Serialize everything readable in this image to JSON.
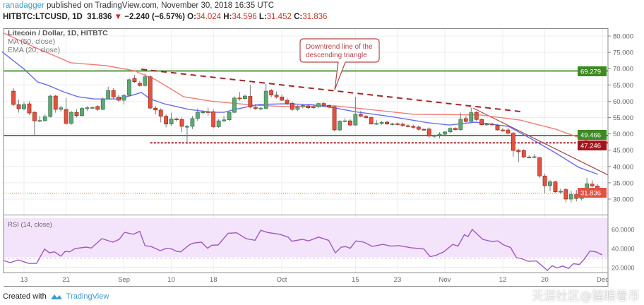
{
  "header": {
    "user": "ranadagger",
    "published": "published on TradingView.com, November 30, 2018 16:35 UTC",
    "symbol": "HITBTC:LTCUSD, 1D",
    "last": "31.836",
    "change": "−2.240 (−6.57%)",
    "o_label": "O:",
    "o": "34.024",
    "h_label": "H:",
    "h": "34.596",
    "l_label": "L:",
    "l": "31.452",
    "c_label": "C:",
    "c": "31.836",
    "down_icon": "triangle-down-icon"
  },
  "legend": {
    "title": "Litecoin / Dollar, 1D, HITBTC",
    "ma": "MA (50, close)",
    "ema": "EMA (20, close)",
    "rsi": "RSI (14, close)"
  },
  "annotation": {
    "line1": "Downtrend line of the",
    "line2": "descending triangle"
  },
  "price_labels": {
    "resistance": "69.279",
    "support": "49.466",
    "support2": "47.246",
    "current": "31.836"
  },
  "colors": {
    "up": "#5fa777",
    "down": "#e0533f",
    "ma": "#f07c78",
    "ema": "#6a6cf0",
    "level": "#3d8a22",
    "support2": "#a3151b",
    "rsi": "#a057c0",
    "trend": "#a0282e"
  },
  "footer": {
    "created": "Created with",
    "brand": "TradingView",
    "watermark": "天涯社区@猫眼看币"
  },
  "chart_data": {
    "type": "candlestick",
    "title": "Litecoin / Dollar, 1D, HITBTC",
    "start_date": "2018-08-11",
    "x_unit": "day index from start_date",
    "ylim": [
      27,
      83
    ],
    "y_ticks": [
      "30.000",
      "35.000",
      "40.000",
      "45.000",
      "50.000",
      "55.000",
      "60.000",
      "65.000",
      "70.000",
      "75.000",
      "80.000"
    ],
    "y_tick_values": [
      30,
      35,
      40,
      45,
      50,
      55,
      60,
      65,
      70,
      75,
      80
    ],
    "x_ticks": [
      {
        "day": 2,
        "label": "13"
      },
      {
        "day": 10,
        "label": "21"
      },
      {
        "day": 21,
        "label": "Sep"
      },
      {
        "day": 30,
        "label": "10"
      },
      {
        "day": 38,
        "label": "18"
      },
      {
        "day": 51,
        "label": "Oct"
      },
      {
        "day": 65,
        "label": "15"
      },
      {
        "day": 73,
        "label": "23"
      },
      {
        "day": 82,
        "label": "Nov"
      },
      {
        "day": 93,
        "label": "12"
      },
      {
        "day": 101,
        "label": "20"
      },
      {
        "day": 112,
        "label": "Dec"
      }
    ],
    "ohlc": [
      [
        63.1,
        64.0,
        58.5,
        59.0
      ],
      [
        59.0,
        60.5,
        56.5,
        57.7
      ],
      [
        57.7,
        59.8,
        57.2,
        59.0
      ],
      [
        59.2,
        60.0,
        55.8,
        56.4
      ],
      [
        56.6,
        57.0,
        49.7,
        54.0
      ],
      [
        54.0,
        55.5,
        53.6,
        54.1
      ],
      [
        54.0,
        56.0,
        53.8,
        55.3
      ],
      [
        55.3,
        62.0,
        55.0,
        61.6
      ],
      [
        61.6,
        62.0,
        56.5,
        57.5
      ],
      [
        57.5,
        58.6,
        56.8,
        58.0
      ],
      [
        57.5,
        61.0,
        52.8,
        53.2
      ],
      [
        53.2,
        57.0,
        52.8,
        56.6
      ],
      [
        56.6,
        57.5,
        55.0,
        55.6
      ],
      [
        55.6,
        58.2,
        55.3,
        57.8
      ],
      [
        57.8,
        58.5,
        57.0,
        58.0
      ],
      [
        58.0,
        58.4,
        57.6,
        58.1
      ],
      [
        58.4,
        58.8,
        57.0,
        57.5
      ],
      [
        57.5,
        61.2,
        57.2,
        60.7
      ],
      [
        60.7,
        64.5,
        60.5,
        63.3
      ],
      [
        63.3,
        64.0,
        60.8,
        61.3
      ],
      [
        61.3,
        62.0,
        59.8,
        60.3
      ],
      [
        60.3,
        62.2,
        59.0,
        61.8
      ],
      [
        61.8,
        67.0,
        61.5,
        66.6
      ],
      [
        67.0,
        68.0,
        65.6,
        66.0
      ],
      [
        65.5,
        66.2,
        64.5,
        64.8
      ],
      [
        64.8,
        68.6,
        64.5,
        67.5
      ],
      [
        67.5,
        68.0,
        57.5,
        57.9
      ],
      [
        57.9,
        58.5,
        56.0,
        57.3
      ],
      [
        57.3,
        57.8,
        53.5,
        55.4
      ],
      [
        55.4,
        56.0,
        52.0,
        53.0
      ],
      [
        53.0,
        56.5,
        52.5,
        54.6
      ],
      [
        54.6,
        55.0,
        53.8,
        54.5
      ],
      [
        54.4,
        55.0,
        50.5,
        52.3
      ],
      [
        52.3,
        52.7,
        46.9,
        52.3
      ],
      [
        52.3,
        55.5,
        51.5,
        54.7
      ],
      [
        54.7,
        57.8,
        54.0,
        56.6
      ],
      [
        56.6,
        57.3,
        56.0,
        56.7
      ],
      [
        56.8,
        58.0,
        55.5,
        56.6
      ],
      [
        56.8,
        57.5,
        51.8,
        52.2
      ],
      [
        52.2,
        54.5,
        51.8,
        54.0
      ],
      [
        54.0,
        55.5,
        53.6,
        54.3
      ],
      [
        54.3,
        57.0,
        54.0,
        56.6
      ],
      [
        56.6,
        61.5,
        56.3,
        61.0
      ],
      [
        61.0,
        62.8,
        60.2,
        60.8
      ],
      [
        60.8,
        62.0,
        60.5,
        61.6
      ],
      [
        61.5,
        65.0,
        57.8,
        58.2
      ],
      [
        58.2,
        59.2,
        57.3,
        57.8
      ],
      [
        57.8,
        58.3,
        57.2,
        57.9
      ],
      [
        57.8,
        65.3,
        57.5,
        63.1
      ],
      [
        63.3,
        63.8,
        61.2,
        61.9
      ],
      [
        61.9,
        63.0,
        60.8,
        61.3
      ],
      [
        61.3,
        62.0,
        60.0,
        60.3
      ],
      [
        60.3,
        61.0,
        58.8,
        59.4
      ],
      [
        59.4,
        59.8,
        57.0,
        57.5
      ],
      [
        57.5,
        58.8,
        57.0,
        58.3
      ],
      [
        58.3,
        59.2,
        57.8,
        58.7
      ],
      [
        58.6,
        59.0,
        57.6,
        58.0
      ],
      [
        58.0,
        58.8,
        57.6,
        58.3
      ],
      [
        58.3,
        59.6,
        58.0,
        59.3
      ],
      [
        59.3,
        59.8,
        58.3,
        58.7
      ],
      [
        58.7,
        59.0,
        57.8,
        58.2
      ],
      [
        58.3,
        58.6,
        50.8,
        51.2
      ],
      [
        51.2,
        54.2,
        50.8,
        53.9
      ],
      [
        53.9,
        54.8,
        53.5,
        54.0
      ],
      [
        54.0,
        54.5,
        52.3,
        52.7
      ],
      [
        52.7,
        61.4,
        52.5,
        56.0
      ],
      [
        56.0,
        57.0,
        55.2,
        55.4
      ],
      [
        55.4,
        55.8,
        54.6,
        55.0
      ],
      [
        55.0,
        55.4,
        52.8,
        53.0
      ],
      [
        53.0,
        54.2,
        52.7,
        53.2
      ],
      [
        53.2,
        54.0,
        52.8,
        53.5
      ],
      [
        53.6,
        54.0,
        52.8,
        53.0
      ],
      [
        53.0,
        53.4,
        52.6,
        53.1
      ],
      [
        53.1,
        53.5,
        52.6,
        52.9
      ],
      [
        53.0,
        53.5,
        52.2,
        52.5
      ],
      [
        52.5,
        52.9,
        52.0,
        52.3
      ],
      [
        52.3,
        52.8,
        51.6,
        52.0
      ],
      [
        52.1,
        52.5,
        51.0,
        51.4
      ],
      [
        51.4,
        51.8,
        51.0,
        51.3
      ],
      [
        51.5,
        52.0,
        48.8,
        49.3
      ],
      [
        49.3,
        49.8,
        48.8,
        49.5
      ],
      [
        49.5,
        50.5,
        48.6,
        49.9
      ],
      [
        49.9,
        50.8,
        49.5,
        50.6
      ],
      [
        50.6,
        52.0,
        50.3,
        51.7
      ],
      [
        51.7,
        52.0,
        51.0,
        51.3
      ],
      [
        51.3,
        56.5,
        51.0,
        54.5
      ],
      [
        54.7,
        55.5,
        53.5,
        53.8
      ],
      [
        53.8,
        58.0,
        53.5,
        56.5
      ],
      [
        56.6,
        57.0,
        54.0,
        54.4
      ],
      [
        54.4,
        54.8,
        52.6,
        52.8
      ],
      [
        52.8,
        53.4,
        52.4,
        53.0
      ],
      [
        53.0,
        53.4,
        52.6,
        52.9
      ],
      [
        52.6,
        53.0,
        51.0,
        51.2
      ],
      [
        51.2,
        51.8,
        50.6,
        51.0
      ],
      [
        51.2,
        51.8,
        49.8,
        50.2
      ],
      [
        50.2,
        50.6,
        43.0,
        44.9
      ],
      [
        45.0,
        45.4,
        41.3,
        44.5
      ],
      [
        44.9,
        45.3,
        42.6,
        42.9
      ],
      [
        42.9,
        43.4,
        42.5,
        42.9
      ],
      [
        42.9,
        43.8,
        42.6,
        43.0
      ],
      [
        42.7,
        42.9,
        36.5,
        37.1
      ],
      [
        37.1,
        37.8,
        31.8,
        34.1
      ],
      [
        34.1,
        35.8,
        32.5,
        35.3
      ],
      [
        35.3,
        35.6,
        32.0,
        32.2
      ],
      [
        32.2,
        33.2,
        31.5,
        32.4
      ],
      [
        32.9,
        33.5,
        29.0,
        30.0
      ],
      [
        30.0,
        32.6,
        29.0,
        31.4
      ],
      [
        31.4,
        32.8,
        29.3,
        30.2
      ],
      [
        30.2,
        31.8,
        29.6,
        31.5
      ],
      [
        31.5,
        36.5,
        31.3,
        34.7
      ],
      [
        34.6,
        35.8,
        33.6,
        34.0
      ],
      [
        34.024,
        34.596,
        31.452,
        31.836
      ]
    ],
    "ma50": [
      [
        -1.9,
        80.9
      ],
      [
        4.1,
        76.5
      ],
      [
        10.9,
        71.8
      ],
      [
        17.6,
        70.9
      ],
      [
        22.9,
        69.4
      ],
      [
        27,
        66.6
      ],
      [
        29.7,
        64
      ],
      [
        32.3,
        61.4
      ],
      [
        37.7,
        60
      ],
      [
        41.7,
        59.4
      ],
      [
        45.8,
        58.8
      ],
      [
        51.1,
        58.4
      ],
      [
        61.2,
        58.6
      ],
      [
        76.2,
        56
      ],
      [
        88.7,
        55.8
      ],
      [
        96.4,
        54.2
      ],
      [
        103.1,
        51.4
      ],
      [
        110.2,
        47.3
      ]
    ],
    "ema20": [
      [
        -2.2,
        75.2
      ],
      [
        1.9,
        70
      ],
      [
        4.6,
        65.9
      ],
      [
        6.4,
        65
      ],
      [
        9.5,
        62.9
      ],
      [
        12.2,
        61.4
      ],
      [
        15.3,
        60.7
      ],
      [
        19.9,
        60.7
      ],
      [
        22.5,
        61.8
      ],
      [
        24.3,
        62.7
      ],
      [
        26,
        60.7
      ],
      [
        28.7,
        59.2
      ],
      [
        33.3,
        57.5
      ],
      [
        37.7,
        56.6
      ],
      [
        40,
        56.6
      ],
      [
        42.1,
        57.5
      ],
      [
        46.7,
        59
      ],
      [
        51.1,
        59.2
      ],
      [
        56.5,
        59
      ],
      [
        61.2,
        57.9
      ],
      [
        64.9,
        56.8
      ],
      [
        71.7,
        55.3
      ],
      [
        78.9,
        53.4
      ],
      [
        82.9,
        52.7
      ],
      [
        87.8,
        53.6
      ],
      [
        94.1,
        52.3
      ],
      [
        98.5,
        48.4
      ],
      [
        103.1,
        44.1
      ],
      [
        107.5,
        39.7
      ],
      [
        111.1,
        37.6
      ]
    ],
    "levels": [
      {
        "name": "resistance",
        "value": 69.279,
        "style": "solid"
      },
      {
        "name": "support",
        "value": 49.466,
        "style": "solid"
      },
      {
        "name": "support2",
        "value": 47.246,
        "style": "dotted",
        "from_day": 26
      },
      {
        "name": "current",
        "value": 31.836,
        "style": "dotted"
      }
    ],
    "downtrend_line": [
      [
        24.3,
        69.8
      ],
      [
        96.6,
        56.8
      ]
    ],
    "breakdown_line": [
      [
        87.4,
        57.9
      ],
      [
        118.7,
        37.4
      ]
    ],
    "rsi": {
      "title": "RSI (14, close)",
      "ylim": [
        12,
        74
      ],
      "y_ticks": [
        "20.0000",
        "40.0000",
        "60.0000"
      ],
      "y_tick_values": [
        20,
        40,
        60
      ],
      "band": [
        30,
        70
      ],
      "points": [
        [
          -1.9,
          27.4
        ],
        [
          -0.6,
          25.2
        ],
        [
          0.9,
          28.1
        ],
        [
          2.9,
          24.4
        ],
        [
          4.4,
          24.4
        ],
        [
          5.9,
          39.5
        ],
        [
          6.8,
          35.5
        ],
        [
          7.8,
          36.5
        ],
        [
          9,
          32
        ],
        [
          9.8,
          37
        ],
        [
          10.7,
          36.5
        ],
        [
          11.7,
          40
        ],
        [
          13.8,
          41.5
        ],
        [
          14.8,
          40.5
        ],
        [
          16.8,
          50.4
        ],
        [
          18.9,
          46.7
        ],
        [
          20.1,
          49.6
        ],
        [
          21.1,
          57
        ],
        [
          22.8,
          55
        ],
        [
          24,
          58
        ],
        [
          25,
          43
        ],
        [
          26.2,
          42
        ],
        [
          27.9,
          37.8
        ],
        [
          29.1,
          40.3
        ],
        [
          30.1,
          39.5
        ],
        [
          31,
          37
        ],
        [
          31.8,
          36.5
        ],
        [
          33.4,
          43.7
        ],
        [
          34.2,
          45.7
        ],
        [
          35.7,
          46.7
        ],
        [
          36.9,
          40.3
        ],
        [
          37.7,
          43.5
        ],
        [
          38.9,
          43.7
        ],
        [
          40.8,
          56
        ],
        [
          42.4,
          56.5
        ],
        [
          44.2,
          50.4
        ],
        [
          45.9,
          48.6
        ],
        [
          47,
          59.2
        ],
        [
          48.3,
          56.8
        ],
        [
          50.6,
          55
        ],
        [
          52.2,
          52
        ],
        [
          52.9,
          47.6
        ],
        [
          54.9,
          49.6
        ],
        [
          56.1,
          48
        ],
        [
          58,
          52
        ],
        [
          59.9,
          48.6
        ],
        [
          61.2,
          35.5
        ],
        [
          62.3,
          41.5
        ],
        [
          63.2,
          42
        ],
        [
          64,
          40.3
        ],
        [
          65.1,
          48
        ],
        [
          66.6,
          46.7
        ],
        [
          68.2,
          42.2
        ],
        [
          70.2,
          44.4
        ],
        [
          71.7,
          42.5
        ],
        [
          73.3,
          43
        ],
        [
          75.6,
          40.8
        ],
        [
          78,
          39.5
        ],
        [
          79.2,
          31.5
        ],
        [
          80.3,
          32.8
        ],
        [
          81.8,
          36.5
        ],
        [
          83.5,
          44.4
        ],
        [
          84.5,
          42.6
        ],
        [
          85.7,
          54.5
        ],
        [
          86.4,
          52.5
        ],
        [
          87.2,
          60
        ],
        [
          89.2,
          49.6
        ],
        [
          90.9,
          47.4
        ],
        [
          92.1,
          48
        ],
        [
          93.1,
          44
        ],
        [
          94.5,
          41
        ],
        [
          95.6,
          30.4
        ],
        [
          96.5,
          29.6
        ],
        [
          97.8,
          26.6
        ],
        [
          99.4,
          27
        ],
        [
          101.5,
          17
        ],
        [
          102.4,
          22
        ],
        [
          103.3,
          19.6
        ],
        [
          104.4,
          21.6
        ],
        [
          105.5,
          19.1
        ],
        [
          106.4,
          24
        ],
        [
          107.6,
          23.3
        ],
        [
          108.4,
          28.2
        ],
        [
          109.6,
          37.4
        ],
        [
          110.7,
          36.5
        ],
        [
          111.9,
          33.3
        ]
      ]
    }
  }
}
